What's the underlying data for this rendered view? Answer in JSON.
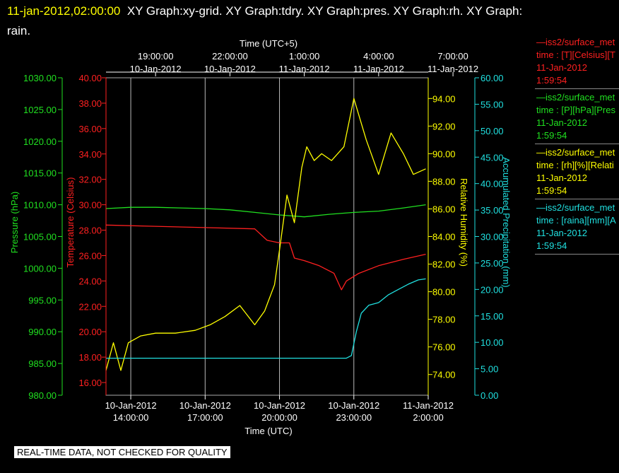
{
  "title": {
    "timestamp": "11-jan-2012,02:00:00",
    "graphs": "XY Graph:xy-grid.  XY Graph:tdry.  XY Graph:pres.  XY Graph:rh.  XY Graph:",
    "line2": "rain."
  },
  "qc_notice": "REAL-TIME DATA, NOT CHECKED FOR QUALITY",
  "legend": [
    {
      "color": "#ff2020",
      "line1": "—iss2/surface_met",
      "line2": "time : [T][Celsius][T",
      "line3": "11-Jan-2012",
      "line4": "1:59:54"
    },
    {
      "color": "#20e020",
      "line1": "—iss2/surface_met",
      "line2": "time : [P][hPa][Pres",
      "line3": "11-Jan-2012",
      "line4": "1:59:54"
    },
    {
      "color": "#ffff00",
      "line1": "—iss2/surface_met",
      "line2": "time : [rh][%][Relati",
      "line3": "11-Jan-2012",
      "line4": "1:59:54"
    },
    {
      "color": "#20e0e0",
      "line1": "—iss2/surface_met",
      "line2": "time : [raina][mm][A",
      "line3": "11-Jan-2012",
      "line4": "1:59:54"
    }
  ],
  "chart_data": {
    "type": "line",
    "top_axis": {
      "title": "Time (UTC+5)",
      "ticks": [
        {
          "x": 15,
          "l1": "19:00:00",
          "l2": "10-Jan-2012"
        },
        {
          "x": 18,
          "l1": "22:00:00",
          "l2": "10-Jan-2012"
        },
        {
          "x": 21,
          "l1": "1:00:00",
          "l2": "11-Jan-2012"
        },
        {
          "x": 24,
          "l1": "4:00:00",
          "l2": "11-Jan-2012"
        },
        {
          "x": 27,
          "l1": "7:00:00",
          "l2": "11-Jan-2012"
        }
      ]
    },
    "bottom_axis": {
      "title": "Time (UTC)",
      "ticks": [
        {
          "x": 14,
          "l1": "10-Jan-2012",
          "l2": "14:00:00"
        },
        {
          "x": 17,
          "l1": "10-Jan-2012",
          "l2": "17:00:00"
        },
        {
          "x": 20,
          "l1": "10-Jan-2012",
          "l2": "20:00:00"
        },
        {
          "x": 23,
          "l1": "10-Jan-2012",
          "l2": "23:00:00"
        },
        {
          "x": 26,
          "l1": "11-Jan-2012",
          "l2": "2:00:00"
        }
      ]
    },
    "x_unit_note": "x values are hours UTC measured from 10-Jan-2012 00:00",
    "xlim": [
      13.0,
      26.0
    ],
    "axes": [
      {
        "id": "pres",
        "label": "Pressure (hPa)",
        "color": "#20e020",
        "lim": [
          980,
          1030
        ],
        "ticks": [
          "980.00",
          "985.00",
          "990.00",
          "995.00",
          "1000.00",
          "1005.00",
          "1010.00",
          "1015.00",
          "1020.00",
          "1025.00",
          "1030.00"
        ]
      },
      {
        "id": "temp",
        "label": "Temperature (Celsius)",
        "color": "#ff2020",
        "lim": [
          15,
          40
        ],
        "ticks": [
          "16.00",
          "18.00",
          "20.00",
          "22.00",
          "24.00",
          "26.00",
          "28.00",
          "30.00",
          "32.00",
          "34.00",
          "36.00",
          "38.00",
          "40.00"
        ]
      },
      {
        "id": "rh",
        "label": "Relative Humidity (%)",
        "color": "#ffff00",
        "lim": [
          72.5,
          95.5
        ],
        "ticks": [
          "74.00",
          "76.00",
          "78.00",
          "80.00",
          "82.00",
          "84.00",
          "86.00",
          "88.00",
          "90.00",
          "92.00",
          "94.00"
        ]
      },
      {
        "id": "rain",
        "label": "Accumulated Precipitation (mm)",
        "color": "#20e0e0",
        "lim": [
          0,
          60
        ],
        "ticks": [
          "0.00",
          "5.00",
          "10.00",
          "15.00",
          "20.00",
          "25.00",
          "30.00",
          "35.00",
          "40.00",
          "45.00",
          "50.00",
          "55.00",
          "60.00"
        ]
      }
    ],
    "series": [
      {
        "axis": "pres",
        "color": "#20e020",
        "x": [
          13.0,
          14.0,
          15.0,
          16.0,
          17.0,
          18.0,
          19.0,
          20.0,
          21.0,
          22.0,
          23.0,
          24.0,
          25.0,
          25.9
        ],
        "y": [
          1009.4,
          1009.6,
          1009.6,
          1009.5,
          1009.4,
          1009.2,
          1008.8,
          1008.4,
          1008.1,
          1008.5,
          1008.8,
          1009.0,
          1009.5,
          1010.0
        ]
      },
      {
        "axis": "temp",
        "color": "#ff2020",
        "x": [
          13.0,
          15.0,
          17.0,
          19.0,
          19.5,
          20.0,
          20.4,
          20.6,
          21.0,
          21.6,
          22.2,
          22.5,
          22.7,
          23.2,
          24.0,
          25.0,
          25.9
        ],
        "y": [
          28.4,
          28.3,
          28.2,
          28.1,
          27.2,
          27.0,
          27.0,
          25.8,
          25.6,
          25.2,
          24.6,
          23.3,
          24.0,
          24.6,
          25.2,
          25.7,
          26.1
        ]
      },
      {
        "axis": "rh",
        "color": "#ffff00",
        "x": [
          13.0,
          13.3,
          13.6,
          13.9,
          14.4,
          15.0,
          15.8,
          16.6,
          17.2,
          17.8,
          18.4,
          19.0,
          19.4,
          19.8,
          20.0,
          20.3,
          20.6,
          20.9,
          21.1,
          21.4,
          21.7,
          22.1,
          22.6,
          23.0,
          23.5,
          24.0,
          24.5,
          25.0,
          25.4,
          25.9
        ],
        "y": [
          74.3,
          76.3,
          74.3,
          76.3,
          76.8,
          77.0,
          77.0,
          77.2,
          77.6,
          78.2,
          79.0,
          77.6,
          78.6,
          80.5,
          83.0,
          87.0,
          85.0,
          89.0,
          90.5,
          89.5,
          90.0,
          89.5,
          90.5,
          94.0,
          91.0,
          88.5,
          91.5,
          90.0,
          88.5,
          88.9
        ]
      },
      {
        "axis": "rain",
        "color": "#20e0e0",
        "x": [
          13.0,
          14.0,
          16.0,
          18.0,
          20.0,
          22.0,
          22.7,
          22.9,
          23.1,
          23.3,
          23.6,
          24.0,
          24.4,
          24.8,
          25.2,
          25.6,
          25.9
        ],
        "y": [
          7.0,
          7.0,
          7.0,
          7.0,
          7.0,
          7.0,
          7.0,
          7.5,
          12.0,
          15.5,
          17.0,
          17.5,
          19.0,
          20.0,
          21.0,
          21.8,
          22.0
        ]
      }
    ]
  }
}
